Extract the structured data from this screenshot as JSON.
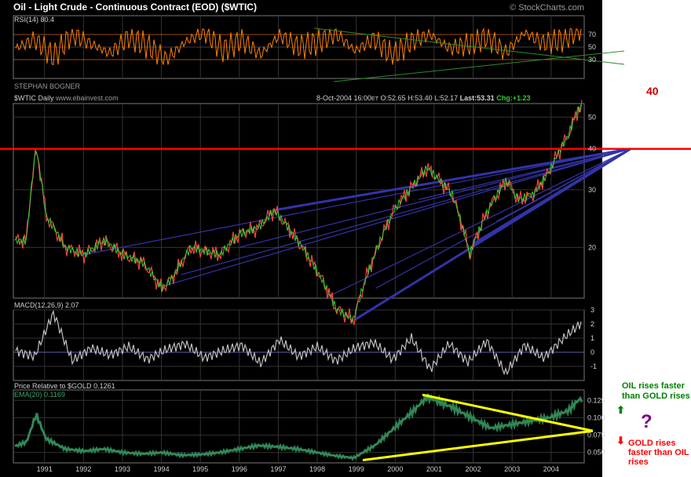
{
  "header": {
    "title": "Oil - Light Crude - Continuous Contract (EOD) ($WTIC)",
    "watermark": "© StockCharts.com"
  },
  "chart_data": [
    {
      "panel": "rsi",
      "type": "line",
      "label": "RSI(14)",
      "value": "80.4",
      "ylim": [
        0,
        100
      ],
      "ticks": [
        "70",
        "50",
        "30"
      ],
      "bands": [
        70,
        30
      ],
      "color": "#ff8000",
      "series_sample": [
        48,
        62,
        35,
        71,
        55,
        40,
        66,
        52,
        30,
        58,
        74,
        45,
        61,
        38,
        69,
        50,
        57,
        72,
        44,
        63,
        36,
        59,
        70,
        48,
        54,
        67,
        41,
        73,
        56,
        62,
        80
      ]
    },
    {
      "panel": "price",
      "type": "line",
      "label": "$WTIC Daily",
      "url": "www.ebainvest.com",
      "annotation": "STEPHAN BOGNER",
      "scale": "log",
      "ylim": [
        14,
        55
      ],
      "quote": {
        "date": "8-Oct-2004 16:00",
        "tz": "ET",
        "open": "O:52.65",
        "high": "H:53.40",
        "low": "L:52.17",
        "last": "Last:53.31",
        "change": "Chg:+1.23"
      },
      "ticks": [
        "50",
        "40",
        "30",
        "20"
      ],
      "x_labels": [
        "1991",
        "1992",
        "1993",
        "1994",
        "1995",
        "1996",
        "1997",
        "1998",
        "1999",
        "2000",
        "2001",
        "2002",
        "2003",
        "2004"
      ],
      "x": [
        1990.0,
        1990.5,
        1990.75,
        1991.0,
        1991.5,
        1992.0,
        1992.5,
        1993.0,
        1993.5,
        1994.0,
        1994.25,
        1994.75,
        1995.5,
        1996.0,
        1996.5,
        1996.9,
        1997.5,
        1998.0,
        1998.5,
        1998.95,
        1999.5,
        2000.0,
        2000.5,
        2000.85,
        2001.5,
        2001.95,
        2002.5,
        2002.9,
        2003.2,
        2003.6,
        2004.0,
        2004.5,
        2004.77
      ],
      "values": [
        21,
        21,
        40,
        25,
        20,
        19,
        21,
        19,
        18,
        15,
        16,
        20,
        19,
        22,
        23,
        26,
        21,
        17,
        13,
        12,
        19,
        26,
        31,
        35,
        29,
        19,
        27,
        32,
        28,
        29,
        34,
        44,
        53.3
      ],
      "horizontal_line": 40,
      "side_label": "40",
      "side_label_color": "#ff0000",
      "line_color": "#ff0000",
      "fan_color": "#3333aa"
    },
    {
      "panel": "macd",
      "type": "line",
      "label": "MACD(12,26,9)",
      "value": "2.07",
      "ylim": [
        -2,
        3
      ],
      "ticks": [
        "3",
        "2",
        "1",
        "0",
        "-1"
      ],
      "color": "#c0c0c0",
      "series_sample": [
        0.1,
        -0.3,
        2.8,
        -0.6,
        0.3,
        -0.2,
        0.4,
        -0.5,
        0.2,
        0.6,
        -0.4,
        0.1,
        0.5,
        -0.8,
        0.9,
        -0.3,
        0.4,
        -0.6,
        0.3,
        0.7,
        -0.5,
        1.0,
        -1.2,
        0.6,
        -0.7,
        0.8,
        -1.5,
        0.5,
        -0.4,
        0.9,
        2.07
      ]
    },
    {
      "panel": "relative",
      "type": "area",
      "label": "Price Relative to $GOLD",
      "value": "0.1261",
      "ema_label": "EMA(20)",
      "ema_value": "0.1169",
      "ylim": [
        0.035,
        0.14
      ],
      "ticks": [
        "0.125",
        "0.100",
        "0.075",
        "0.050"
      ],
      "x": [
        1990.0,
        1990.5,
        1990.75,
        1991.0,
        1991.5,
        1992.0,
        1992.5,
        1993.0,
        1993.5,
        1994.0,
        1994.5,
        1995.0,
        1995.5,
        1996.0,
        1996.5,
        1997.0,
        1997.5,
        1998.0,
        1998.5,
        1998.95,
        1999.5,
        2000.0,
        2000.5,
        2000.85,
        2001.5,
        2002.0,
        2002.5,
        2003.0,
        2003.5,
        2004.0,
        2004.5,
        2004.77
      ],
      "values": [
        0.055,
        0.065,
        0.105,
        0.07,
        0.055,
        0.052,
        0.055,
        0.05,
        0.048,
        0.05,
        0.046,
        0.047,
        0.05,
        0.055,
        0.06,
        0.058,
        0.055,
        0.05,
        0.045,
        0.042,
        0.06,
        0.085,
        0.11,
        0.13,
        0.115,
        0.1,
        0.085,
        0.09,
        0.095,
        0.1,
        0.11,
        0.126
      ],
      "color": "#339966",
      "triangle_color": "#ffff00",
      "labels": {
        "up": "OIL rises faster than GOLD rises",
        "down": "GOLD rises faster than OIL rises",
        "mid": "?",
        "up_color": "#008000",
        "down_color": "#ff0000",
        "mid_color": "#800080"
      }
    }
  ]
}
